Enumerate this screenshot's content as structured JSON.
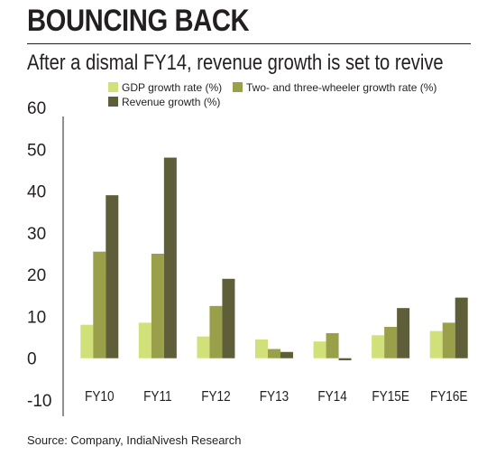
{
  "header": {
    "title": "BOUNCING BACK",
    "subtitle": "After a dismal FY14, revenue growth is set to revive"
  },
  "footer": {
    "source": "Source: Company, IndiaNivesh Research"
  },
  "colors": {
    "gdp": "#d2e07a",
    "two_three_wheeler": "#9aa04a",
    "revenue": "#5e5e38",
    "axis": "#231f20"
  },
  "chart_data": {
    "type": "bar",
    "title": "",
    "xlabel": "",
    "ylabel": "",
    "ylim": [
      -10,
      60
    ],
    "yticks": [
      60,
      50,
      40,
      30,
      20,
      10,
      0,
      -10
    ],
    "grid": false,
    "legend_position": "top",
    "categories": [
      "FY10",
      "FY11",
      "FY12",
      "FY13",
      "FY14",
      "FY15E",
      "FY16E"
    ],
    "series": [
      {
        "name": "GDP growth rate (%)",
        "color": "#d2e07a",
        "values": [
          8.0,
          8.5,
          5.2,
          4.5,
          4.0,
          5.5,
          6.5
        ]
      },
      {
        "name": "Two- and three-wheeler growth rate (%)",
        "color": "#9aa04a",
        "values": [
          25.5,
          25.0,
          12.5,
          2.2,
          6.0,
          7.5,
          8.5
        ]
      },
      {
        "name": "Revenue growth (%)",
        "color": "#5e5e38",
        "values": [
          39.0,
          48.0,
          19.0,
          1.5,
          -0.5,
          12.0,
          14.5
        ]
      }
    ]
  }
}
